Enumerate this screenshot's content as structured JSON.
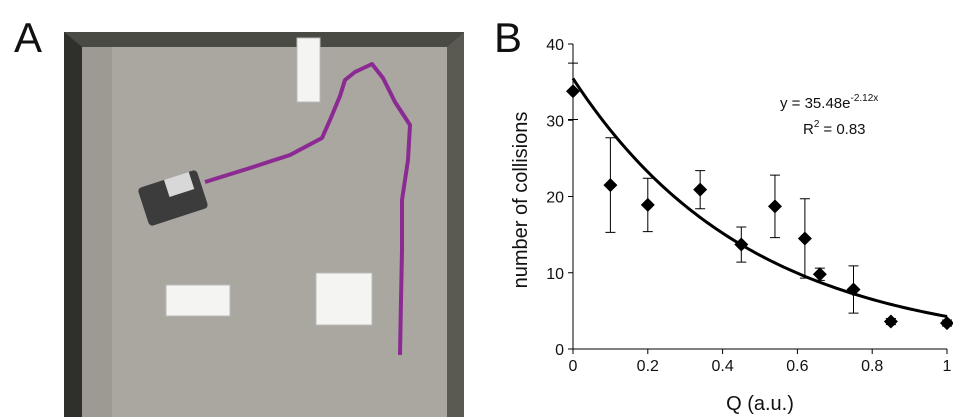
{
  "panel_a": {
    "label": "A"
  },
  "chart_data": {
    "type": "scatter",
    "panel_label": "B",
    "x_label": "Q (a.u.)",
    "y_label": "number of collisions",
    "x": [
      0,
      0.1,
      0.2,
      0.34,
      0.45,
      0.54,
      0.62,
      0.66,
      0.75,
      0.85,
      1.0
    ],
    "values": [
      33.8,
      21.5,
      18.9,
      20.9,
      13.7,
      18.7,
      14.5,
      9.8,
      7.8,
      3.6,
      3.4
    ],
    "errors": [
      3.7,
      6.2,
      3.5,
      2.5,
      2.3,
      4.1,
      5.2,
      0.8,
      3.1,
      0.4,
      0.4
    ],
    "color": "#000000",
    "fit": {
      "a": 35.48,
      "b": -2.12,
      "color": "#000000"
    },
    "equation": {
      "base": "y = 35.48e",
      "exponent": "-2.12x"
    },
    "r_squared": {
      "base": "R",
      "exponent": "2",
      "rest": "= 0.83"
    },
    "xlim": [
      0,
      1
    ],
    "xticks": [
      0,
      0.2,
      0.4,
      0.6,
      0.8,
      1
    ],
    "ylim": [
      0,
      40
    ],
    "yticks": [
      0,
      10,
      20,
      30,
      40
    ]
  }
}
